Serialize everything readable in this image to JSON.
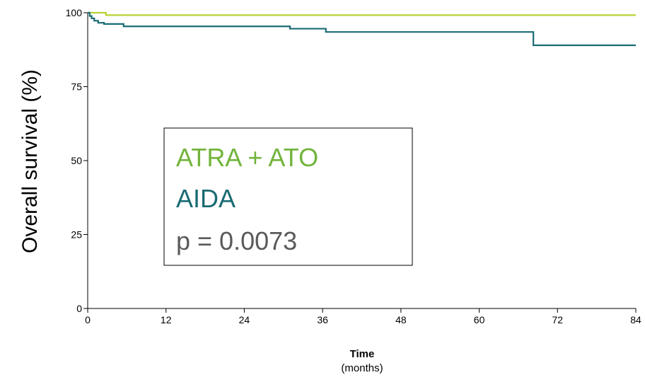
{
  "chart_data": {
    "type": "line",
    "ylabel": "Overall survival (%)",
    "xlabel": "Time",
    "xlabel_unit": "(months)",
    "xlim": [
      0,
      84
    ],
    "ylim": [
      0,
      100
    ],
    "x_ticks": [
      0,
      12,
      24,
      36,
      48,
      60,
      72,
      84
    ],
    "y_ticks": [
      0,
      25,
      50,
      75,
      100
    ],
    "grid": false,
    "legend_position": "center-left",
    "series": [
      {
        "name": "ATRA + ATO",
        "color": "#b5d335",
        "step": true,
        "points": [
          [
            0,
            100
          ],
          [
            2.8,
            100
          ],
          [
            2.8,
            99.2
          ],
          [
            84,
            99.2
          ]
        ]
      },
      {
        "name": "AIDA",
        "color": "#1a6b73",
        "step": true,
        "points": [
          [
            0,
            100
          ],
          [
            0.3,
            100
          ],
          [
            0.3,
            98.9
          ],
          [
            0.6,
            98.9
          ],
          [
            0.6,
            98.1
          ],
          [
            1,
            98.1
          ],
          [
            1,
            97.3
          ],
          [
            1.6,
            97.3
          ],
          [
            1.6,
            96.6
          ],
          [
            2.5,
            96.6
          ],
          [
            2.5,
            96.2
          ],
          [
            5.5,
            96.2
          ],
          [
            5.5,
            95.4
          ],
          [
            31,
            95.4
          ],
          [
            31,
            94.6
          ],
          [
            36.5,
            94.6
          ],
          [
            36.5,
            93.5
          ],
          [
            68.3,
            93.5
          ],
          [
            68.3,
            89
          ],
          [
            84,
            89
          ]
        ]
      }
    ],
    "annotation": "p = 0.0073"
  }
}
